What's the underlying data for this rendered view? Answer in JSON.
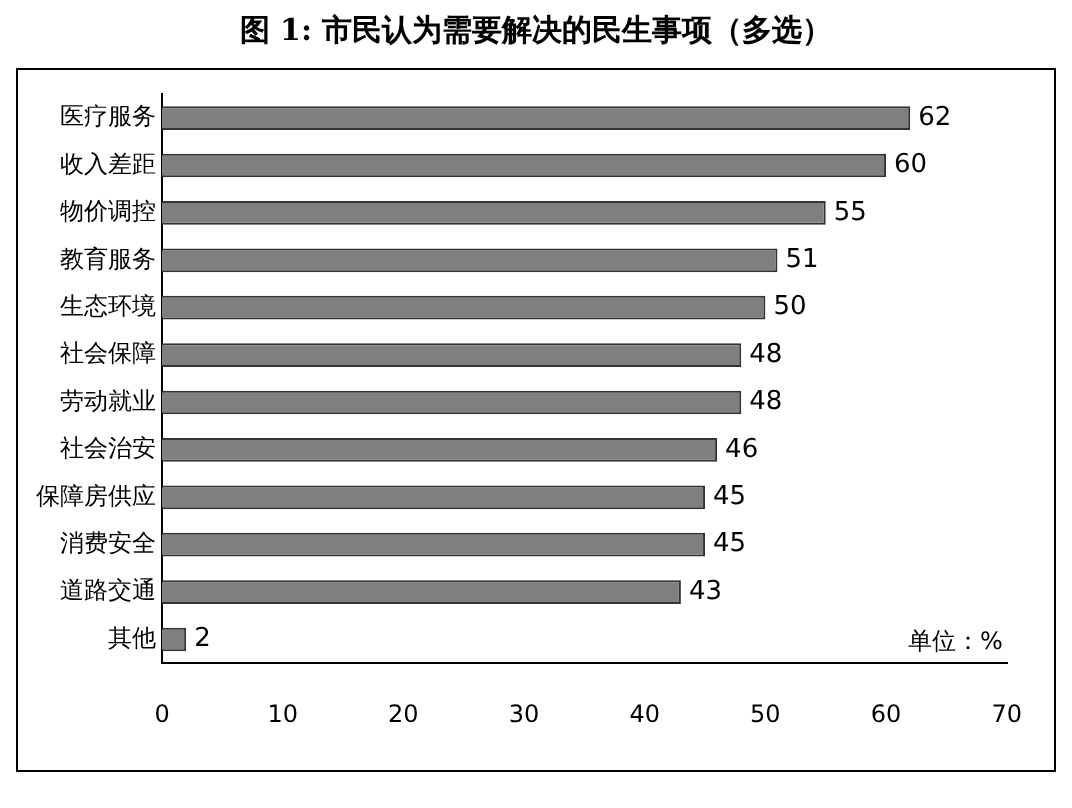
{
  "chart_data": {
    "type": "bar",
    "orientation": "horizontal",
    "title": "图 1:  市民认为需要解决的民生事项（多选）",
    "categories": [
      "医疗服务",
      "收入差距",
      "物价调控",
      "教育服务",
      "生态环境",
      "社会保障",
      "劳动就业",
      "社会治安",
      "保障房供应",
      "消费安全",
      "道路交通",
      "其他"
    ],
    "values": [
      62,
      60,
      55,
      51,
      50,
      48,
      48,
      46,
      45,
      45,
      43,
      2
    ],
    "color": "#7f7f7f",
    "xlim": [
      0,
      70
    ],
    "xticks": [
      0,
      10,
      20,
      30,
      40,
      50,
      60,
      70
    ],
    "grid": false,
    "legend": false,
    "data_labels": true,
    "annotations": [
      "单位：%"
    ]
  }
}
